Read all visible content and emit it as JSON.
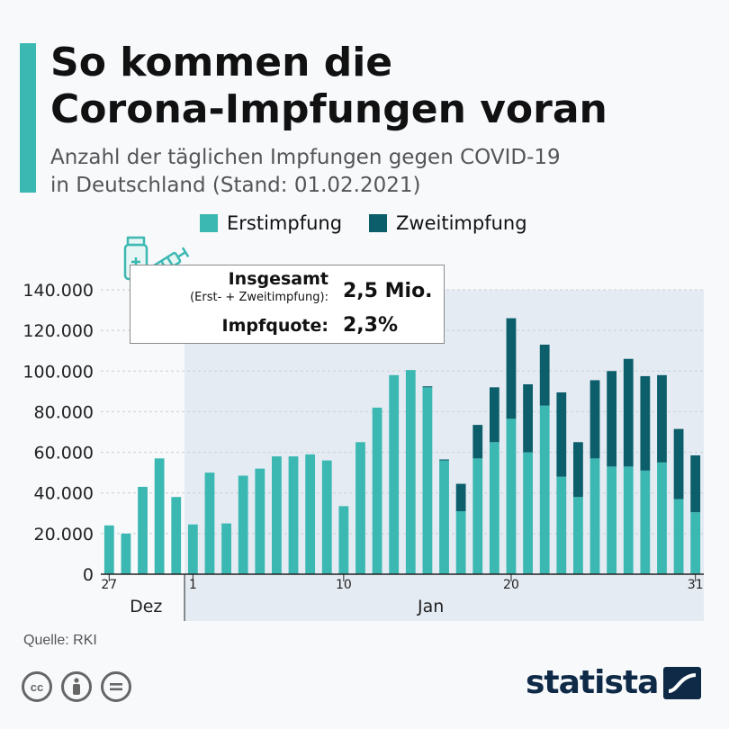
{
  "header": {
    "title_line1": "So kommen die",
    "title_line2": "Corona-Impfungen voran",
    "subtitle_line1": "Anzahl der täglichen Impfungen gegen COVID-19",
    "subtitle_line2": "in Deutschland (Stand: 01.02.2021)"
  },
  "legend": {
    "items": [
      {
        "label": "Erstimpfung",
        "color": "#3cb8b2"
      },
      {
        "label": "Zweitimpfung",
        "color": "#0b5e6a"
      }
    ]
  },
  "info_box": {
    "label_total": "Insgesamt",
    "label_total_sub": "(Erst- + Zweitimpfung):",
    "value_total": "2,5 Mio.",
    "label_quota": "Impfquote:",
    "value_quota": "2,3%"
  },
  "source": "Quelle: RKI",
  "logo": "statista",
  "chart_data": {
    "type": "bar",
    "stacked": true,
    "ylim": [
      0,
      140000
    ],
    "yticks": [
      0,
      20000,
      40000,
      60000,
      80000,
      100000,
      120000,
      140000
    ],
    "ytick_labels": [
      "0",
      "20.000",
      "40.000",
      "60.000",
      "80.000",
      "100.000",
      "120.000",
      "140.000"
    ],
    "categories": [
      "27",
      "28",
      "29",
      "30",
      "31",
      "1",
      "2",
      "3",
      "4",
      "5",
      "6",
      "7",
      "8",
      "9",
      "10",
      "11",
      "12",
      "13",
      "14",
      "15",
      "16",
      "17",
      "18",
      "19",
      "20",
      "21",
      "22",
      "23",
      "24",
      "25",
      "26",
      "27",
      "28",
      "29",
      "30",
      "31"
    ],
    "xtick_labels": [
      {
        "index": 0,
        "label": "27"
      },
      {
        "index": 5,
        "label": "1"
      },
      {
        "index": 14,
        "label": "10"
      },
      {
        "index": 24,
        "label": "20"
      },
      {
        "index": 35,
        "label": "31"
      }
    ],
    "month_labels": [
      {
        "index": 3,
        "label": "Dez"
      },
      {
        "index": 20,
        "label": "Jan"
      }
    ],
    "series": [
      {
        "name": "Erstimpfung",
        "color": "#3cb8b2",
        "values": [
          24000,
          20000,
          43000,
          57000,
          38000,
          24500,
          50000,
          25000,
          48500,
          52000,
          58000,
          58000,
          59000,
          56000,
          33500,
          65000,
          82000,
          98000,
          100500,
          92000,
          56000,
          31000,
          57000,
          65000,
          76500,
          60000,
          83000,
          48000,
          38000,
          57000,
          53000,
          53000,
          51000,
          55000,
          37000,
          30500
        ]
      },
      {
        "name": "Zweitimpfung",
        "color": "#0b5e6a",
        "values": [
          0,
          0,
          0,
          0,
          0,
          0,
          0,
          0,
          0,
          0,
          0,
          0,
          0,
          0,
          0,
          0,
          0,
          0,
          0,
          500,
          500,
          13500,
          16500,
          27000,
          49500,
          33500,
          30000,
          41500,
          27000,
          38500,
          47000,
          53000,
          46500,
          43000,
          34500,
          28000
        ]
      }
    ]
  }
}
